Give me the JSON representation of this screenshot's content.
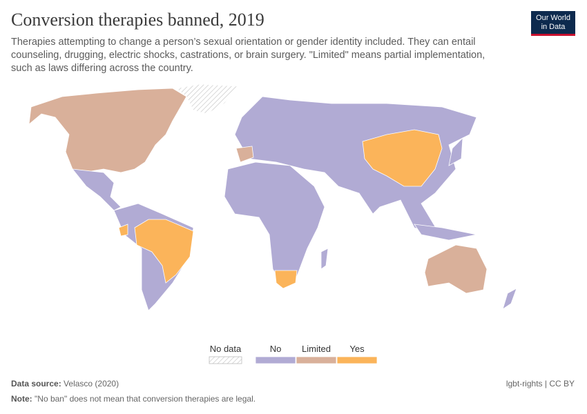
{
  "header": {
    "title": "Conversion therapies banned, 2019",
    "subtitle": "Therapies attempting to change a person’s sexual orientation or gender identity included. They can entail counseling, drugging, electric shocks, castrations, or brain surgery. \"Limited\" means partial implementation, such as laws differing across the country.",
    "logo": [
      "Our World",
      "in Data"
    ]
  },
  "legend": {
    "items": [
      {
        "label": "No data",
        "color": "#e6e6e6"
      },
      {
        "label": "No",
        "color": "#b1abd4"
      },
      {
        "label": "Limited",
        "color": "#d9b09a"
      },
      {
        "label": "Yes",
        "color": "#fbb45a"
      }
    ]
  },
  "footer": {
    "source_label": "Data source:",
    "source": "Velasco (2020)",
    "license": "lgbt-rights | CC BY",
    "note_label": "Note:",
    "note": "\"No ban\" does not mean that conversion therapies are legal."
  }
}
